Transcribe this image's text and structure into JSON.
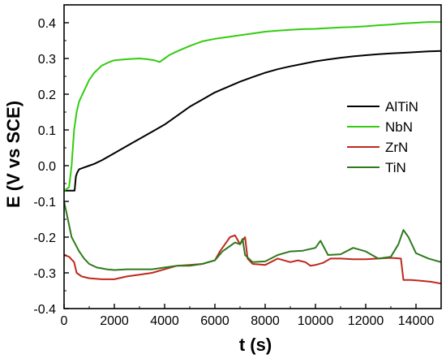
{
  "chart_data": {
    "type": "line",
    "title": "",
    "xlabel": "t (s)",
    "ylabel": "E (V vs SCE)",
    "xlim": [
      0,
      15000
    ],
    "ylim": [
      -0.4,
      0.45
    ],
    "xticks": [
      0,
      2000,
      4000,
      6000,
      8000,
      10000,
      12000,
      14000
    ],
    "yticks": [
      -0.4,
      -0.3,
      -0.2,
      -0.1,
      0.0,
      0.1,
      0.2,
      0.3,
      0.4
    ],
    "ytick_labels": [
      "-0.4",
      "-0.3",
      "-0.2",
      "-0.1",
      "0.0",
      "0.1",
      "0.2",
      "0.3",
      "0.4"
    ],
    "legend_position": "center-right",
    "grid": false,
    "series": [
      {
        "name": "AlTiN",
        "color": "#000000",
        "points": [
          [
            0,
            -0.07
          ],
          [
            300,
            -0.07
          ],
          [
            420,
            -0.07
          ],
          [
            470,
            -0.03
          ],
          [
            520,
            -0.02
          ],
          [
            600,
            -0.01
          ],
          [
            800,
            -0.005
          ],
          [
            1000,
            0.0
          ],
          [
            1200,
            0.005
          ],
          [
            1500,
            0.015
          ],
          [
            2000,
            0.035
          ],
          [
            2500,
            0.055
          ],
          [
            3000,
            0.075
          ],
          [
            3500,
            0.095
          ],
          [
            4000,
            0.115
          ],
          [
            4500,
            0.14
          ],
          [
            5000,
            0.165
          ],
          [
            5500,
            0.185
          ],
          [
            6000,
            0.205
          ],
          [
            6500,
            0.22
          ],
          [
            7000,
            0.235
          ],
          [
            7500,
            0.248
          ],
          [
            8000,
            0.26
          ],
          [
            8500,
            0.27
          ],
          [
            9000,
            0.278
          ],
          [
            9500,
            0.285
          ],
          [
            10000,
            0.292
          ],
          [
            10500,
            0.297
          ],
          [
            11000,
            0.302
          ],
          [
            11500,
            0.306
          ],
          [
            12000,
            0.309
          ],
          [
            12500,
            0.312
          ],
          [
            13000,
            0.314
          ],
          [
            13500,
            0.316
          ],
          [
            14000,
            0.318
          ],
          [
            14500,
            0.32
          ],
          [
            15000,
            0.321
          ]
        ]
      },
      {
        "name": "NbN",
        "color": "#33cc11",
        "points": [
          [
            0,
            -0.07
          ],
          [
            200,
            -0.06
          ],
          [
            300,
            0.0
          ],
          [
            400,
            0.1
          ],
          [
            500,
            0.15
          ],
          [
            600,
            0.18
          ],
          [
            800,
            0.21
          ],
          [
            1000,
            0.24
          ],
          [
            1200,
            0.26
          ],
          [
            1500,
            0.28
          ],
          [
            1800,
            0.29
          ],
          [
            2000,
            0.295
          ],
          [
            2500,
            0.298
          ],
          [
            3000,
            0.3
          ],
          [
            3300,
            0.298
          ],
          [
            3600,
            0.295
          ],
          [
            3800,
            0.29
          ],
          [
            4000,
            0.3
          ],
          [
            4200,
            0.31
          ],
          [
            4500,
            0.32
          ],
          [
            5000,
            0.335
          ],
          [
            5500,
            0.348
          ],
          [
            6000,
            0.355
          ],
          [
            6500,
            0.36
          ],
          [
            7000,
            0.365
          ],
          [
            7500,
            0.37
          ],
          [
            8000,
            0.375
          ],
          [
            8500,
            0.378
          ],
          [
            9000,
            0.38
          ],
          [
            9500,
            0.382
          ],
          [
            10000,
            0.383
          ],
          [
            10500,
            0.385
          ],
          [
            11000,
            0.387
          ],
          [
            11500,
            0.388
          ],
          [
            12000,
            0.39
          ],
          [
            12500,
            0.393
          ],
          [
            13000,
            0.395
          ],
          [
            13500,
            0.398
          ],
          [
            14000,
            0.4
          ],
          [
            14500,
            0.402
          ],
          [
            15000,
            0.402
          ]
        ]
      },
      {
        "name": "ZrN",
        "color": "#c0281e",
        "points": [
          [
            0,
            -0.25
          ],
          [
            200,
            -0.255
          ],
          [
            400,
            -0.27
          ],
          [
            500,
            -0.3
          ],
          [
            700,
            -0.31
          ],
          [
            1000,
            -0.315
          ],
          [
            1500,
            -0.318
          ],
          [
            2000,
            -0.318
          ],
          [
            2500,
            -0.31
          ],
          [
            3000,
            -0.305
          ],
          [
            3500,
            -0.3
          ],
          [
            4000,
            -0.29
          ],
          [
            4500,
            -0.28
          ],
          [
            5000,
            -0.278
          ],
          [
            5500,
            -0.275
          ],
          [
            6000,
            -0.265
          ],
          [
            6200,
            -0.24
          ],
          [
            6400,
            -0.22
          ],
          [
            6600,
            -0.2
          ],
          [
            6800,
            -0.195
          ],
          [
            7000,
            -0.22
          ],
          [
            7200,
            -0.2
          ],
          [
            7300,
            -0.26
          ],
          [
            7500,
            -0.275
          ],
          [
            8000,
            -0.278
          ],
          [
            8500,
            -0.26
          ],
          [
            9000,
            -0.27
          ],
          [
            9300,
            -0.265
          ],
          [
            9600,
            -0.27
          ],
          [
            9800,
            -0.28
          ],
          [
            10000,
            -0.278
          ],
          [
            10300,
            -0.272
          ],
          [
            10600,
            -0.26
          ],
          [
            11000,
            -0.26
          ],
          [
            11500,
            -0.262
          ],
          [
            12000,
            -0.262
          ],
          [
            12500,
            -0.26
          ],
          [
            13000,
            -0.258
          ],
          [
            13400,
            -0.26
          ],
          [
            13500,
            -0.32
          ],
          [
            13800,
            -0.32
          ],
          [
            14200,
            -0.322
          ],
          [
            14600,
            -0.325
          ],
          [
            15000,
            -0.33
          ]
        ]
      },
      {
        "name": "TiN",
        "color": "#2f7a1d",
        "points": [
          [
            0,
            -0.1
          ],
          [
            150,
            -0.15
          ],
          [
            300,
            -0.2
          ],
          [
            450,
            -0.22
          ],
          [
            600,
            -0.24
          ],
          [
            800,
            -0.26
          ],
          [
            1000,
            -0.275
          ],
          [
            1300,
            -0.285
          ],
          [
            1700,
            -0.29
          ],
          [
            2000,
            -0.292
          ],
          [
            2500,
            -0.29
          ],
          [
            3000,
            -0.29
          ],
          [
            3500,
            -0.29
          ],
          [
            4000,
            -0.285
          ],
          [
            4500,
            -0.28
          ],
          [
            5000,
            -0.28
          ],
          [
            5500,
            -0.275
          ],
          [
            6000,
            -0.265
          ],
          [
            6300,
            -0.24
          ],
          [
            6600,
            -0.225
          ],
          [
            6800,
            -0.215
          ],
          [
            7000,
            -0.22
          ],
          [
            7100,
            -0.205
          ],
          [
            7200,
            -0.25
          ],
          [
            7500,
            -0.27
          ],
          [
            8000,
            -0.268
          ],
          [
            8500,
            -0.25
          ],
          [
            9000,
            -0.24
          ],
          [
            9500,
            -0.238
          ],
          [
            10000,
            -0.23
          ],
          [
            10200,
            -0.21
          ],
          [
            10500,
            -0.25
          ],
          [
            11000,
            -0.248
          ],
          [
            11500,
            -0.23
          ],
          [
            12000,
            -0.24
          ],
          [
            12500,
            -0.26
          ],
          [
            13000,
            -0.255
          ],
          [
            13300,
            -0.22
          ],
          [
            13500,
            -0.18
          ],
          [
            13700,
            -0.2
          ],
          [
            14000,
            -0.245
          ],
          [
            14500,
            -0.26
          ],
          [
            15000,
            -0.27
          ]
        ]
      }
    ]
  }
}
